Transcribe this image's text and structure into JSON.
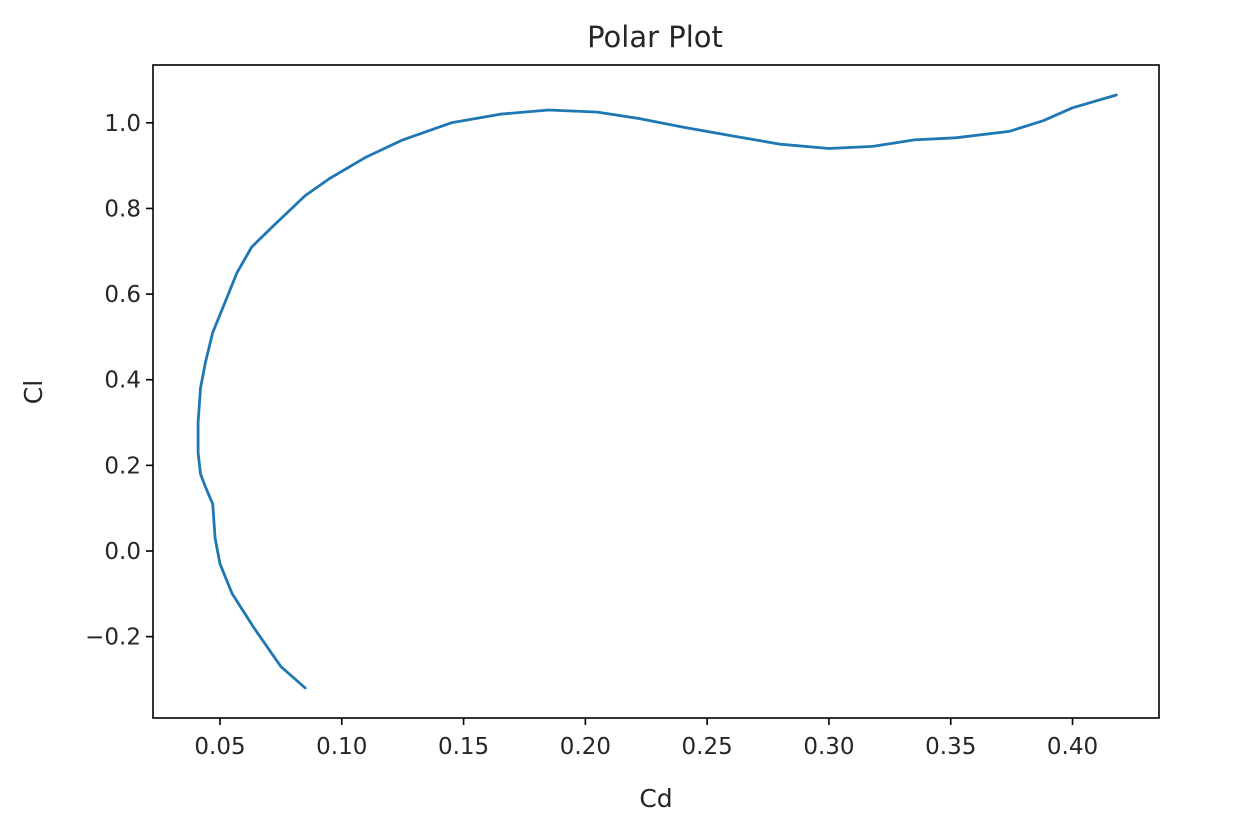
{
  "chart_data": {
    "type": "line",
    "title": "Polar Plot",
    "xlabel": "Cd",
    "ylabel": "Cl",
    "xlim": [
      0.0225,
      0.4355
    ],
    "ylim": [
      -0.39,
      1.135
    ],
    "grid": false,
    "xticks": [
      0.05,
      0.1,
      0.15,
      0.2,
      0.25,
      0.3,
      0.35,
      0.4
    ],
    "xtick_labels": [
      "0.05",
      "0.10",
      "0.15",
      "0.20",
      "0.25",
      "0.30",
      "0.35",
      "0.40"
    ],
    "yticks": [
      -0.2,
      0.0,
      0.2,
      0.4,
      0.6,
      0.8,
      1.0
    ],
    "ytick_labels": [
      "−0.2",
      "0.0",
      "0.2",
      "0.4",
      "0.6",
      "0.8",
      "1.0"
    ],
    "series": [
      {
        "color": "#1f77b4",
        "x": [
          0.085,
          0.075,
          0.064,
          0.055,
          0.05,
          0.048,
          0.047,
          0.044,
          0.042,
          0.041,
          0.041,
          0.042,
          0.044,
          0.047,
          0.052,
          0.057,
          0.063,
          0.072,
          0.085,
          0.095,
          0.11,
          0.125,
          0.145,
          0.165,
          0.185,
          0.205,
          0.222,
          0.24,
          0.26,
          0.28,
          0.3,
          0.318,
          0.335,
          0.352,
          0.374,
          0.388,
          0.4,
          0.418
        ],
        "y": [
          -0.32,
          -0.27,
          -0.18,
          -0.1,
          -0.03,
          0.03,
          0.11,
          0.15,
          0.18,
          0.23,
          0.3,
          0.38,
          0.44,
          0.51,
          0.58,
          0.65,
          0.71,
          0.76,
          0.83,
          0.87,
          0.92,
          0.96,
          1.0,
          1.02,
          1.03,
          1.025,
          1.01,
          0.99,
          0.97,
          0.95,
          0.94,
          0.945,
          0.96,
          0.965,
          0.98,
          1.005,
          1.035,
          1.065
        ]
      }
    ]
  }
}
